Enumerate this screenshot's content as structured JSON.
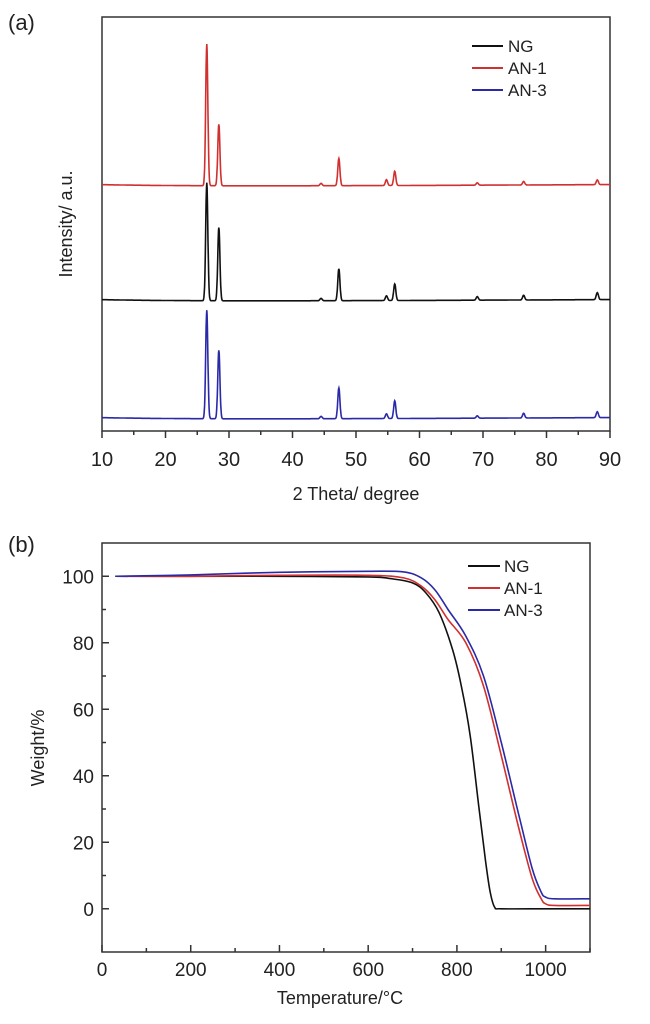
{
  "chart_data": [
    {
      "panel_label": "(a)",
      "type": "line",
      "xlabel": "2 Theta/ degree",
      "ylabel": "Intensity/ a.u.",
      "xlim": [
        10,
        90
      ],
      "xticks": [
        10,
        20,
        30,
        40,
        50,
        60,
        70,
        80,
        90
      ],
      "yticks_shown": false,
      "legend_placement": "top-right",
      "peak_positions": [
        26.5,
        28.4,
        44.5,
        47.3,
        54.8,
        56.1,
        69.1,
        76.4,
        88.0
      ],
      "series": [
        {
          "name": "NG",
          "color": "#111111",
          "offset": 1,
          "peak_intensities": [
            1.0,
            0.62,
            0.02,
            0.27,
            0.04,
            0.14,
            0.03,
            0.04,
            0.06
          ]
        },
        {
          "name": "AN-1",
          "color": "#d03030",
          "offset": 2,
          "peak_intensities": [
            1.2,
            0.52,
            0.02,
            0.23,
            0.05,
            0.12,
            0.02,
            0.03,
            0.04
          ]
        },
        {
          "name": "AN-3",
          "color": "#2a2aa8",
          "offset": 0,
          "peak_intensities": [
            0.92,
            0.58,
            0.02,
            0.26,
            0.04,
            0.15,
            0.02,
            0.04,
            0.05
          ]
        }
      ]
    },
    {
      "panel_label": "(b)",
      "type": "line",
      "xlabel": "Temperature/°C",
      "ylabel": "Weight/%",
      "xlim": [
        0,
        1100
      ],
      "ylim": [
        -13,
        110
      ],
      "xticks": [
        0,
        200,
        400,
        600,
        800,
        1000
      ],
      "yticks": [
        0,
        20,
        40,
        60,
        80,
        100
      ],
      "legend_placement": "top-right",
      "series": [
        {
          "name": "NG",
          "color": "#111111",
          "x": [
            30,
            200,
            400,
            600,
            650,
            700,
            730,
            760,
            790,
            810,
            830,
            850,
            865,
            875,
            885,
            900,
            1000,
            1100
          ],
          "y": [
            100,
            100,
            100,
            99.8,
            99.3,
            98,
            95,
            89,
            78,
            67,
            52,
            30,
            14,
            5,
            0.5,
            0,
            0,
            0
          ]
        },
        {
          "name": "AN-1",
          "color": "#d03030",
          "x": [
            30,
            200,
            400,
            600,
            680,
            720,
            750,
            780,
            820,
            860,
            900,
            940,
            970,
            990,
            1000,
            1020,
            1100
          ],
          "y": [
            100,
            100,
            100.3,
            100.3,
            99.5,
            97,
            93,
            87,
            80,
            67,
            46,
            24,
            9,
            3,
            1.5,
            1,
            1
          ]
        },
        {
          "name": "AN-3",
          "color": "#2a2aa8",
          "x": [
            30,
            200,
            400,
            600,
            680,
            720,
            750,
            780,
            820,
            860,
            900,
            940,
            970,
            990,
            1000,
            1020,
            1100
          ],
          "y": [
            100,
            100.4,
            101.2,
            101.5,
            101.3,
            99.5,
            96,
            90,
            82,
            70,
            50,
            28,
            12,
            5,
            3.5,
            3,
            3
          ]
        }
      ]
    }
  ]
}
